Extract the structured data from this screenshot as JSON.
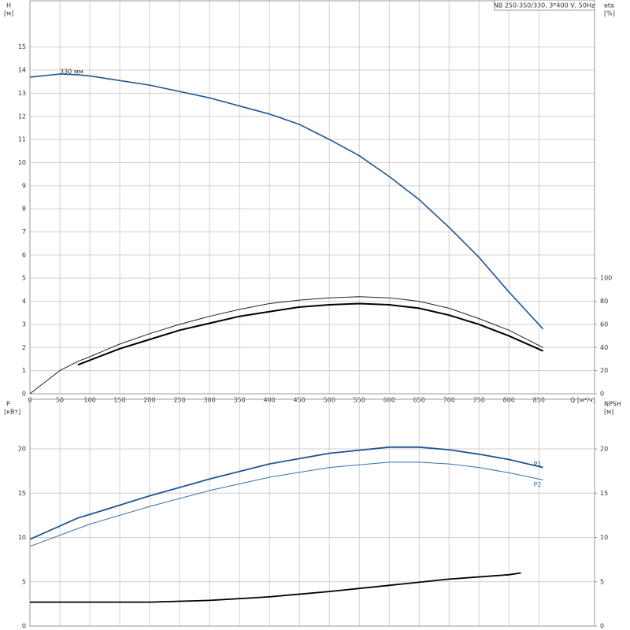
{
  "chart_data": [
    {
      "type": "line",
      "title": "NB 250-350/330, 3*400 V, 50Hz",
      "x_label": "Q [м³/ч]",
      "y_label": "H",
      "y_unit": "[м]",
      "y2_label": "eta",
      "y2_unit": "[%]",
      "xlim": [
        0,
        943
      ],
      "xticks": [
        0,
        50,
        100,
        150,
        200,
        250,
        300,
        350,
        400,
        450,
        500,
        550,
        600,
        650,
        700,
        750,
        800,
        850
      ],
      "ylim": [
        0,
        17
      ],
      "yticks": [
        0,
        1,
        2,
        3,
        4,
        5,
        6,
        7,
        8,
        9,
        10,
        11,
        12,
        13,
        14,
        15
      ],
      "y2lim": [
        0,
        340
      ],
      "y2ticks": [
        0,
        20,
        40,
        60,
        80,
        100
      ],
      "grid": true,
      "series": [
        {
          "name": "330 мм",
          "color": "#1f5591",
          "width": 1.6,
          "x": [
            0,
            50,
            80,
            100,
            200,
            300,
            400,
            450,
            500,
            550,
            600,
            650,
            700,
            750,
            800,
            857
          ],
          "values": [
            13.7,
            13.83,
            13.8,
            13.75,
            13.35,
            12.8,
            12.1,
            11.65,
            11.0,
            10.3,
            9.4,
            8.4,
            7.2,
            5.9,
            4.4,
            2.8
          ]
        },
        {
          "color": "#222222",
          "width": 1,
          "axis": "y2",
          "x": [
            0,
            50,
            80,
            100,
            150,
            200,
            250,
            300,
            350,
            400,
            450,
            500,
            550,
            600,
            650,
            700,
            750,
            800,
            857
          ],
          "values": [
            0,
            20,
            28,
            32,
            43,
            52,
            60,
            67,
            73,
            78,
            81,
            83,
            84,
            83,
            80,
            74,
            65,
            55,
            40
          ]
        },
        {
          "color": "#000000",
          "width": 2,
          "axis": "y2",
          "x": [
            80,
            100,
            150,
            200,
            250,
            300,
            350,
            400,
            450,
            500,
            550,
            600,
            650,
            700,
            750,
            800,
            857
          ],
          "values": [
            25,
            29,
            39,
            47,
            55,
            61,
            67,
            71,
            75,
            77,
            78,
            77,
            74,
            68,
            60,
            50,
            37
          ]
        }
      ]
    },
    {
      "type": "line",
      "y_label": "P",
      "y_unit": "[кВт]",
      "y2_label": "NPSH",
      "y2_unit": "[м]",
      "xlim": [
        0,
        943
      ],
      "xticks": [
        0,
        50,
        100,
        150,
        200,
        250,
        300,
        350,
        400,
        450,
        500,
        550,
        600,
        650,
        700,
        750,
        800,
        850
      ],
      "ylim": [
        0,
        25.6
      ],
      "yticks": [
        0,
        5,
        10,
        15,
        20
      ],
      "y2lim": [
        0,
        25.6
      ],
      "y2ticks": [
        0,
        5,
        10,
        15,
        20
      ],
      "grid": true,
      "series": [
        {
          "name": "P1",
          "color": "#1f5591",
          "width": 1.8,
          "x": [
            0,
            80,
            100,
            200,
            300,
            400,
            500,
            600,
            650,
            700,
            750,
            800,
            857
          ],
          "values": [
            9.8,
            12.2,
            12.6,
            14.7,
            16.6,
            18.3,
            19.5,
            20.2,
            20.2,
            19.9,
            19.4,
            18.8,
            17.9
          ]
        },
        {
          "name": "P2",
          "color": "#3a6ea5",
          "width": 1,
          "x": [
            0,
            100,
            200,
            300,
            400,
            500,
            600,
            650,
            700,
            750,
            800,
            857
          ],
          "values": [
            9.0,
            11.5,
            13.5,
            15.3,
            16.8,
            17.9,
            18.5,
            18.5,
            18.3,
            17.9,
            17.3,
            16.5
          ]
        },
        {
          "color": "#000000",
          "width": 1.8,
          "axis": "y2",
          "x": [
            0,
            80,
            100,
            200,
            300,
            400,
            500,
            600,
            700,
            800,
            820
          ],
          "values": [
            2.7,
            2.7,
            2.7,
            2.7,
            2.9,
            3.3,
            3.9,
            4.6,
            5.3,
            5.8,
            6.0
          ]
        }
      ]
    }
  ]
}
